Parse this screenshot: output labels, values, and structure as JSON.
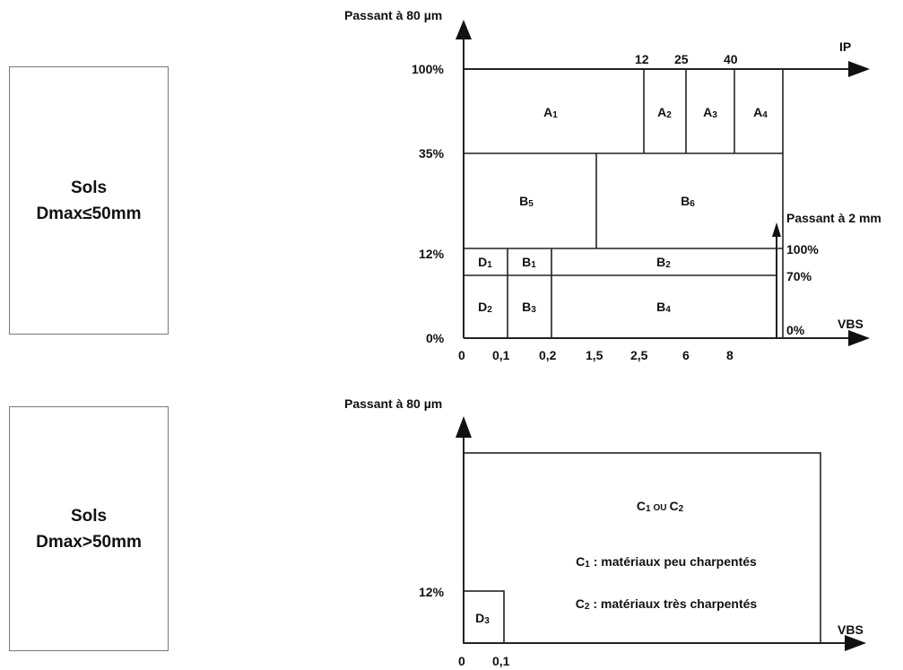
{
  "soil_boxes": {
    "box1": {
      "line1": "Sols",
      "line2": "Dmax≤50mm"
    },
    "box2": {
      "line1": "Sols",
      "line2": "Dmax>50mm"
    }
  },
  "diagram1": {
    "y_axis_label": "Passant à 80 µm",
    "y_ticks": [
      "100%",
      "35%",
      "12%",
      "0%"
    ],
    "ip_axis_label": "IP",
    "ip_ticks": [
      "12",
      "25",
      "40"
    ],
    "x_axis_label": "VBS",
    "x_ticks": [
      "0",
      "0,1",
      "0,2",
      "1,5",
      "2,5",
      "6",
      "8"
    ],
    "secondary_axis_label": "Passant à 2 mm",
    "secondary_ticks": [
      "100%",
      "70%",
      "0%"
    ],
    "classes": {
      "A1": {
        "letter": "A",
        "index": "1"
      },
      "A2": {
        "letter": "A",
        "index": "2"
      },
      "A3": {
        "letter": "A",
        "index": "3"
      },
      "A4": {
        "letter": "A",
        "index": "4"
      },
      "B5": {
        "letter": "B",
        "index": "5"
      },
      "B6": {
        "letter": "B",
        "index": "6"
      },
      "D1": {
        "letter": "D",
        "index": "1"
      },
      "B1": {
        "letter": "B",
        "index": "1"
      },
      "B2": {
        "letter": "B",
        "index": "2"
      },
      "D2": {
        "letter": "D",
        "index": "2"
      },
      "B3": {
        "letter": "B",
        "index": "3"
      },
      "B4": {
        "letter": "B",
        "index": "4"
      }
    }
  },
  "diagram2": {
    "y_axis_label": "Passant à 80 µm",
    "y_ticks": [
      "12%"
    ],
    "x_axis_label": "VBS",
    "x_ticks": [
      "0",
      "0,1"
    ],
    "class_label": {
      "c1": "C",
      "c1_index": "1",
      "ou": "OU",
      "c2": "C",
      "c2_index": "2"
    },
    "legend_c1": {
      "letter": "C",
      "index": "1",
      "text": " : matériaux peu charpentés"
    },
    "legend_c2": {
      "letter": "C",
      "index": "2",
      "text": " : matériaux très charpentés"
    },
    "class_d3": {
      "letter": "D",
      "index": "3"
    }
  }
}
